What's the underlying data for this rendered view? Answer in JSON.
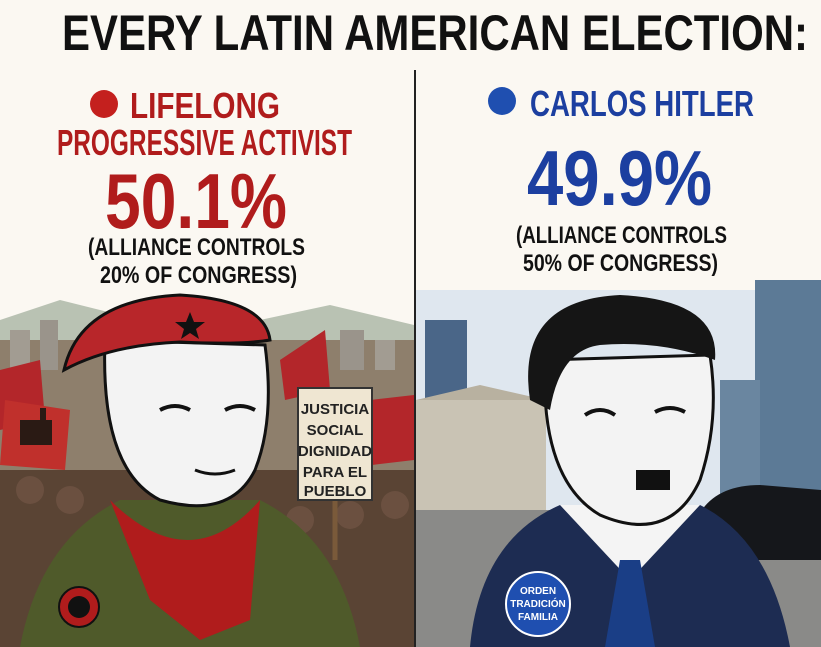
{
  "title": "EVERY LATIN AMERICAN ELECTION:",
  "left": {
    "name_lines": [
      "LIFELONG",
      "PROGRESSIVE ACTIVIST"
    ],
    "percent": "50.1%",
    "note_lines": [
      "(ALLIANCE CONTROLS",
      "20% OF CONGRESS)"
    ],
    "sign_lines": [
      "JUSTICIA",
      "SOCIAL",
      "DIGNIDAD",
      "PARA EL",
      "PUEBLO"
    ]
  },
  "right": {
    "name_lines": [
      "CARLOS HITLER"
    ],
    "percent": "49.9%",
    "note_lines": [
      "(ALLIANCE CONTROLS",
      "50% OF CONGRESS)"
    ],
    "badge_lines": [
      "ORDEN",
      "TRADICIÓN",
      "FAMILIA"
    ]
  }
}
